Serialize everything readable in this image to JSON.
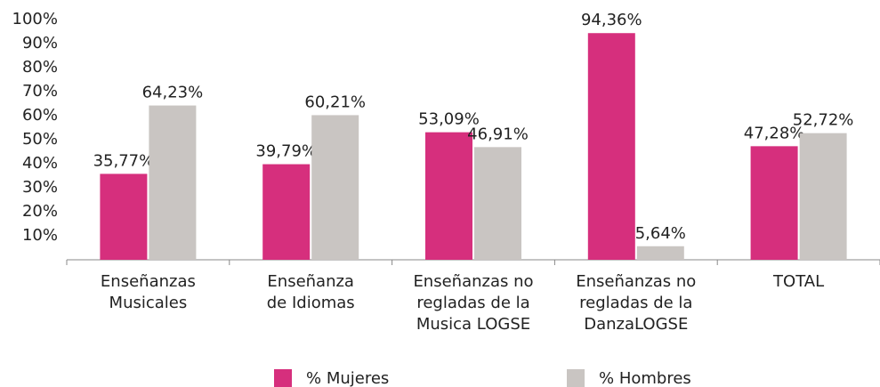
{
  "chart_data": {
    "type": "bar",
    "categories": [
      "Enseñanzas\nMusicales",
      "Enseñanza\nde Idiomas",
      "Enseñanzas no\nregladas de la\nMusica LOGSE",
      "Enseñanzas no\nregladas de la\nDanzaLOGSE",
      "TOTAL"
    ],
    "series": [
      {
        "name": "% Mujeres",
        "color": "#d62f7d",
        "values": [
          35.77,
          39.79,
          53.09,
          94.36,
          47.28
        ],
        "value_labels": [
          "35,77%",
          "39,79%",
          "53,09%",
          "94,36%",
          "47,28%"
        ]
      },
      {
        "name": "% Hombres",
        "color": "#c9c5c2",
        "values": [
          64.23,
          60.21,
          46.91,
          5.64,
          52.72
        ],
        "value_labels": [
          "64,23%",
          "60,21%",
          "46,91%",
          "5,64%",
          "52,72%"
        ]
      }
    ],
    "ylim": [
      0,
      100
    ],
    "yticks": [
      {
        "value": 10,
        "label": "10%"
      },
      {
        "value": 20,
        "label": "20%"
      },
      {
        "value": 30,
        "label": "30%"
      },
      {
        "value": 40,
        "label": "40%"
      },
      {
        "value": 50,
        "label": "50%"
      },
      {
        "value": 60,
        "label": "60%"
      },
      {
        "value": 70,
        "label": "70%"
      },
      {
        "value": 80,
        "label": "80%"
      },
      {
        "value": 90,
        "label": "90%"
      },
      {
        "value": 100,
        "label": "100%"
      }
    ],
    "grid": false,
    "legend": "bottom"
  }
}
